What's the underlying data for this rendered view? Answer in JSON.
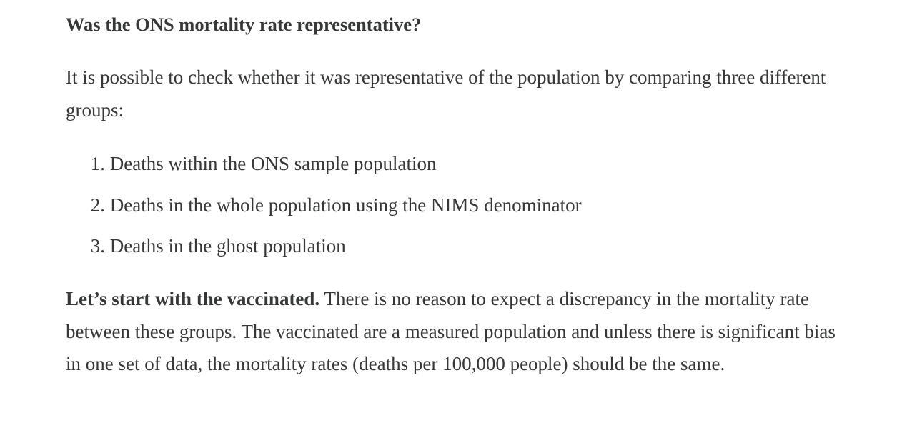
{
  "article": {
    "heading": "Was the ONS mortality rate representative?",
    "intro": "It is possible to check whether it was representative of the population by comparing three different groups:",
    "list": [
      {
        "num": "1.",
        "text": "Deaths within the ONS sample population"
      },
      {
        "num": "2.",
        "text": "Deaths in the whole population using the NIMS denominator"
      },
      {
        "num": "3.",
        "text": "Deaths in the ghost population"
      }
    ],
    "closing_bold": "Let’s start with the vaccinated.",
    "closing_rest": " There is no reason to expect a discrepancy in the mortality rate between these groups. The vaccinated are a measured population and unless there is significant bias in one set of data, the mortality rates (deaths per 100,000 people) should be the same."
  }
}
